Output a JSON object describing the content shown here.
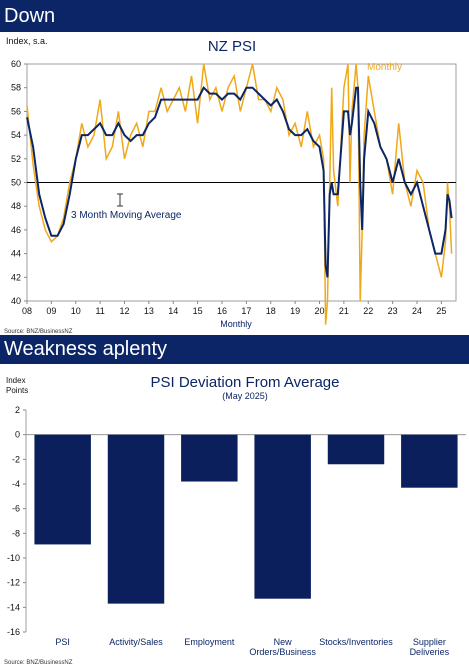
{
  "banners": {
    "top": "Down",
    "bottom": "Weakness aplenty"
  },
  "colors": {
    "navy": "#0b2566",
    "gold": "#f0a818",
    "bar": "#0a1f5c"
  },
  "chart_data": [
    {
      "type": "line",
      "title": "NZ PSI",
      "ylabel": "Index, s.a.",
      "xlabel": "Monthly",
      "source": "Source: BNZ/BusinessNZ",
      "ylim": [
        40,
        60
      ],
      "yticks": [
        40,
        42,
        44,
        46,
        48,
        50,
        52,
        54,
        56,
        58,
        60
      ],
      "xlim": [
        2008,
        2025.6
      ],
      "xtick_labels": [
        "08",
        "09",
        "10",
        "11",
        "12",
        "13",
        "14",
        "15",
        "16",
        "17",
        "18",
        "19",
        "20",
        "21",
        "22",
        "23",
        "24",
        "25"
      ],
      "reference_line": 50,
      "series_labels": {
        "monthly": "Monthly",
        "ma": "3 Month Moving Average"
      },
      "series": [
        {
          "name": "Monthly",
          "x": [
            2008.0,
            2008.25,
            2008.5,
            2008.75,
            2009.0,
            2009.25,
            2009.5,
            2009.75,
            2010.0,
            2010.25,
            2010.5,
            2010.75,
            2011.0,
            2011.25,
            2011.5,
            2011.75,
            2012.0,
            2012.25,
            2012.5,
            2012.75,
            2013.0,
            2013.25,
            2013.5,
            2013.75,
            2014.0,
            2014.25,
            2014.5,
            2014.75,
            2015.0,
            2015.25,
            2015.5,
            2015.75,
            2016.0,
            2016.25,
            2016.5,
            2016.75,
            2017.0,
            2017.25,
            2017.5,
            2017.75,
            2018.0,
            2018.25,
            2018.5,
            2018.75,
            2019.0,
            2019.25,
            2019.5,
            2019.75,
            2020.0,
            2020.17,
            2020.25,
            2020.33,
            2020.42,
            2020.5,
            2020.58,
            2020.75,
            2021.0,
            2021.17,
            2021.25,
            2021.33,
            2021.5,
            2021.58,
            2021.67,
            2021.75,
            2021.83,
            2022.0,
            2022.25,
            2022.5,
            2022.75,
            2023.0,
            2023.25,
            2023.5,
            2023.75,
            2024.0,
            2024.25,
            2024.5,
            2024.75,
            2025.0,
            2025.17,
            2025.25,
            2025.33,
            2025.42
          ],
          "y": [
            56.5,
            51.5,
            48,
            46,
            45,
            45.5,
            47,
            50,
            52,
            55,
            53,
            54,
            57,
            52,
            53,
            56,
            52,
            54,
            55,
            53,
            56,
            56,
            58,
            56,
            57,
            58,
            56,
            59,
            55,
            60,
            57,
            58,
            56,
            58,
            59,
            56,
            58,
            60,
            57,
            57,
            56,
            58,
            57,
            54,
            55,
            53,
            56,
            53,
            54,
            52,
            38,
            40,
            50,
            58,
            51,
            48,
            58,
            60,
            50,
            56,
            60,
            58,
            40,
            46,
            54,
            59,
            56,
            53,
            52,
            49,
            55,
            50,
            48,
            51,
            50,
            46,
            44,
            42,
            45,
            50,
            48,
            44
          ]
        },
        {
          "name": "3 Month Moving Average",
          "x": [
            2008.0,
            2008.25,
            2008.5,
            2008.75,
            2009.0,
            2009.25,
            2009.5,
            2009.75,
            2010.0,
            2010.25,
            2010.5,
            2010.75,
            2011.0,
            2011.25,
            2011.5,
            2011.75,
            2012.0,
            2012.25,
            2012.5,
            2012.75,
            2013.0,
            2013.25,
            2013.5,
            2013.75,
            2014.0,
            2014.25,
            2014.5,
            2014.75,
            2015.0,
            2015.25,
            2015.5,
            2015.75,
            2016.0,
            2016.25,
            2016.5,
            2016.75,
            2017.0,
            2017.25,
            2017.5,
            2017.75,
            2018.0,
            2018.25,
            2018.5,
            2018.75,
            2019.0,
            2019.25,
            2019.5,
            2019.75,
            2020.0,
            2020.17,
            2020.25,
            2020.33,
            2020.42,
            2020.5,
            2020.58,
            2020.75,
            2021.0,
            2021.17,
            2021.25,
            2021.33,
            2021.5,
            2021.58,
            2021.67,
            2021.75,
            2021.83,
            2022.0,
            2022.25,
            2022.5,
            2022.75,
            2023.0,
            2023.25,
            2023.5,
            2023.75,
            2024.0,
            2024.25,
            2024.5,
            2024.75,
            2025.0,
            2025.17,
            2025.25,
            2025.33,
            2025.42
          ],
          "y": [
            55.5,
            53,
            49,
            47,
            45.5,
            45.5,
            46.5,
            49,
            52,
            54,
            54,
            54.5,
            55,
            54,
            54,
            55,
            54,
            53.5,
            54,
            54,
            55,
            55.5,
            57,
            57,
            57,
            57,
            57,
            57,
            57,
            58,
            57.5,
            57.5,
            57,
            57.5,
            57.5,
            57,
            58,
            58,
            57.5,
            57,
            56.5,
            57,
            56,
            54.5,
            54,
            54,
            54.5,
            53.5,
            53,
            51,
            43,
            42,
            49,
            50,
            49,
            49,
            56,
            56,
            54,
            55,
            58,
            58,
            50,
            46,
            52,
            56,
            55,
            53,
            52,
            50,
            52,
            50,
            49,
            50,
            48,
            46,
            44,
            44,
            46,
            49,
            48.5,
            47
          ]
        }
      ]
    },
    {
      "type": "bar",
      "title": "PSI Deviation From Average",
      "subtitle": "(May 2025)",
      "ylabel_lines": [
        "Index",
        "Points"
      ],
      "source": "Source: BNZ/BusinessNZ",
      "ylim": [
        -16,
        2
      ],
      "yticks": [
        2,
        0,
        -2,
        -4,
        -6,
        -8,
        -10,
        -12,
        -14,
        -16
      ],
      "categories": [
        [
          "PSI"
        ],
        [
          "Activity/Sales"
        ],
        [
          "Employment"
        ],
        [
          "New",
          "Orders/Business"
        ],
        [
          "Stocks/Inventories"
        ],
        [
          "Supplier",
          "Deliveries"
        ]
      ],
      "values": [
        -8.9,
        -13.7,
        -3.8,
        -13.3,
        -2.4,
        -4.3
      ]
    }
  ]
}
